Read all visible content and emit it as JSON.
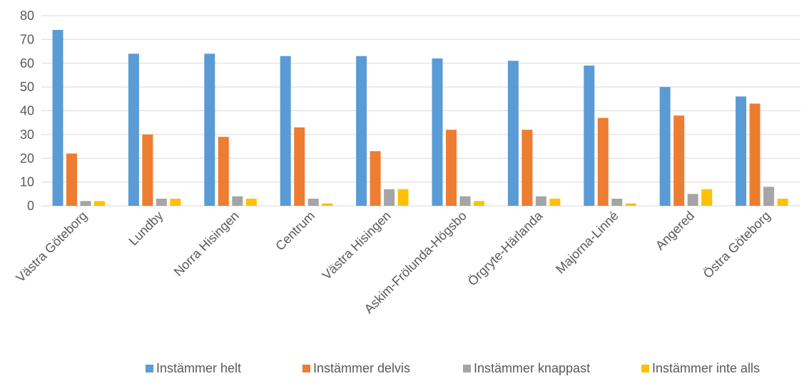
{
  "chart_data": {
    "type": "bar",
    "title": "",
    "xlabel": "",
    "ylabel": "",
    "ylim": [
      0,
      80
    ],
    "yticks": [
      0,
      10,
      20,
      30,
      40,
      50,
      60,
      70,
      80
    ],
    "grid": true,
    "legend_position": "bottom",
    "categories": [
      "Västra Göteborg",
      "Lundby",
      "Norra Hisingen",
      "Centrum",
      "Västra Hisingen",
      "Askim-Frölunda-Högsbo",
      "Örgryte-Härlanda",
      "Majorna-Linné",
      "Angered",
      "Östra Göteborg"
    ],
    "series": [
      {
        "name": "Instämmer helt",
        "color": "#5b9bd5",
        "values": [
          74,
          64,
          64,
          63,
          63,
          62,
          61,
          59,
          50,
          46
        ]
      },
      {
        "name": "Instämmer delvis",
        "color": "#ed7d31",
        "values": [
          22,
          30,
          29,
          33,
          23,
          32,
          32,
          37,
          38,
          43
        ]
      },
      {
        "name": "Instämmer knappast",
        "color": "#a5a5a5",
        "values": [
          2,
          3,
          4,
          3,
          7,
          4,
          4,
          3,
          5,
          8
        ]
      },
      {
        "name": "Instämmer inte alls",
        "color": "#ffc000",
        "values": [
          2,
          3,
          3,
          1,
          7,
          2,
          3,
          1,
          7,
          3
        ]
      }
    ]
  }
}
